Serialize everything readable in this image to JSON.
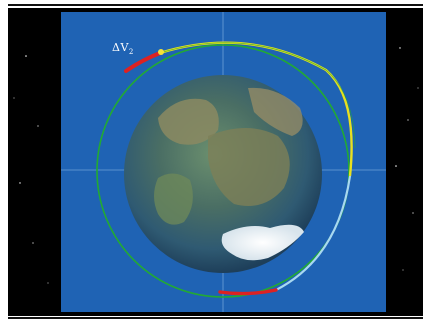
{
  "labels": {
    "delta_v": "ΔV",
    "delta_v_subscript": "2"
  },
  "colors": {
    "space": "#000000",
    "panel": "#1f63b4",
    "grid": "#7fb0e0",
    "initial_orbit": "#22aa33",
    "transfer_orbit_upper": "#e8e020",
    "transfer_orbit_lower": "#a8d8f0",
    "burn": "#dd2222"
  }
}
